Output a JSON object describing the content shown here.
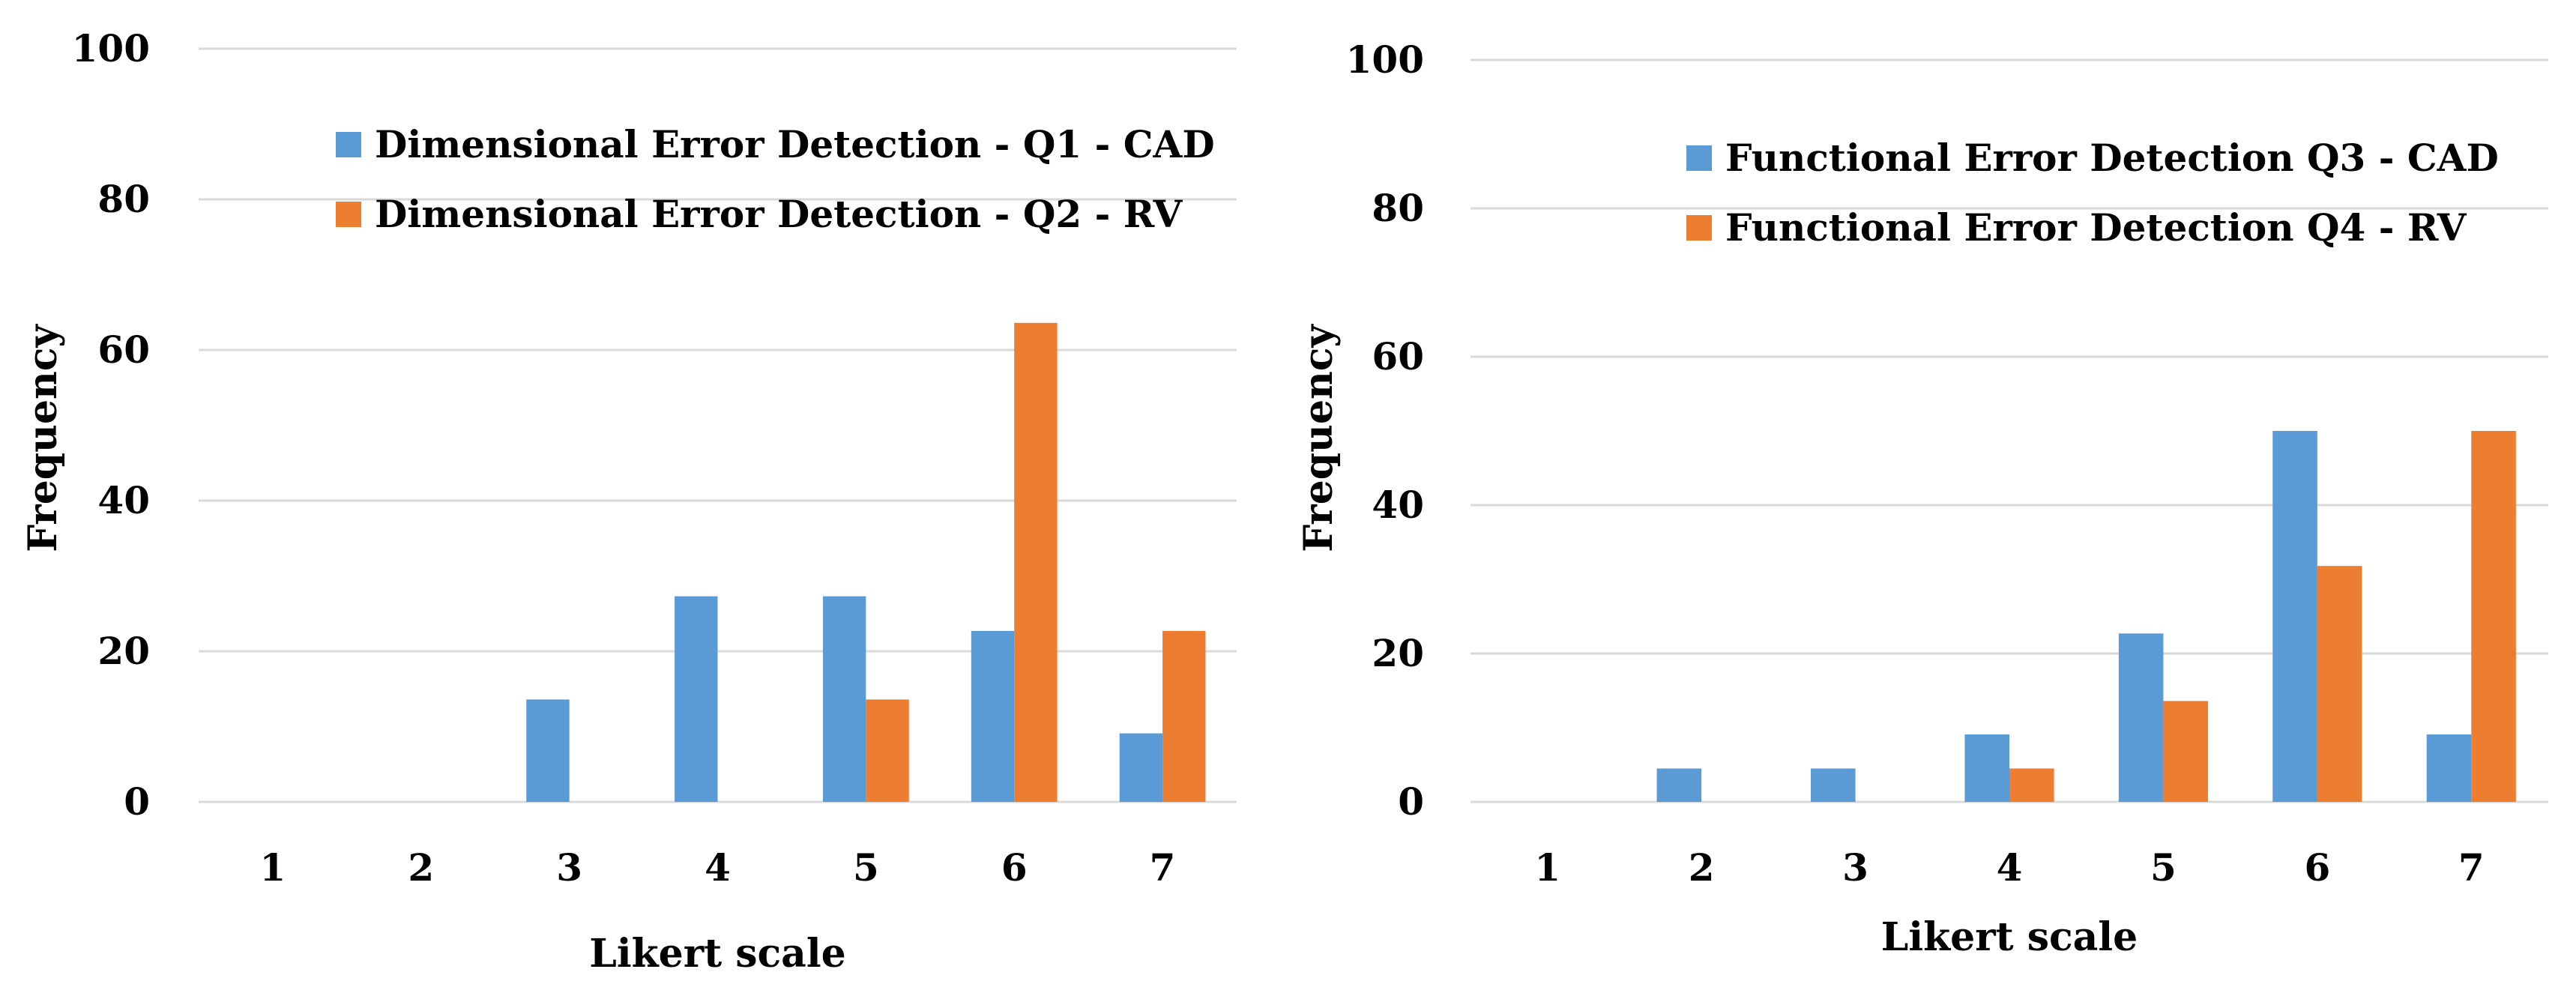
{
  "colors": {
    "series1": "#5b9bd5",
    "series2": "#ed7d31",
    "grid": "#d9d9d9",
    "text": "#000000"
  },
  "chart_data": [
    {
      "type": "bar",
      "title": "",
      "xlabel": "Likert scale",
      "ylabel": "Frequency",
      "ylim": [
        0,
        100
      ],
      "yticks": [
        "0",
        "20",
        "40",
        "60",
        "80",
        "100"
      ],
      "categories": [
        "1",
        "2",
        "3",
        "4",
        "5",
        "6",
        "7"
      ],
      "legend_position": "top-right",
      "grid": true,
      "series": [
        {
          "name": "Dimensional Error Detection - Q1 - CAD",
          "values": [
            0,
            0,
            13.6,
            27.3,
            27.3,
            22.7,
            9.1
          ]
        },
        {
          "name": "Dimensional Error Detection - Q2 - RV",
          "values": [
            0,
            0,
            0,
            0,
            13.6,
            63.6,
            22.7
          ]
        }
      ]
    },
    {
      "type": "bar",
      "title": "",
      "xlabel": "Likert scale",
      "ylabel": "Frequency",
      "ylim": [
        0,
        100
      ],
      "yticks": [
        "0",
        "20",
        "40",
        "60",
        "80",
        "100"
      ],
      "categories": [
        "1",
        "2",
        "3",
        "4",
        "5",
        "6",
        "7"
      ],
      "legend_position": "top-right",
      "grid": true,
      "series": [
        {
          "name": "Functional Error Detection Q3 - CAD",
          "values": [
            0,
            4.5,
            4.5,
            9.1,
            22.7,
            50,
            9.1
          ]
        },
        {
          "name": "Functional Error Detection Q4 - RV",
          "values": [
            0,
            0,
            0,
            4.5,
            13.6,
            31.8,
            50
          ]
        }
      ]
    }
  ]
}
